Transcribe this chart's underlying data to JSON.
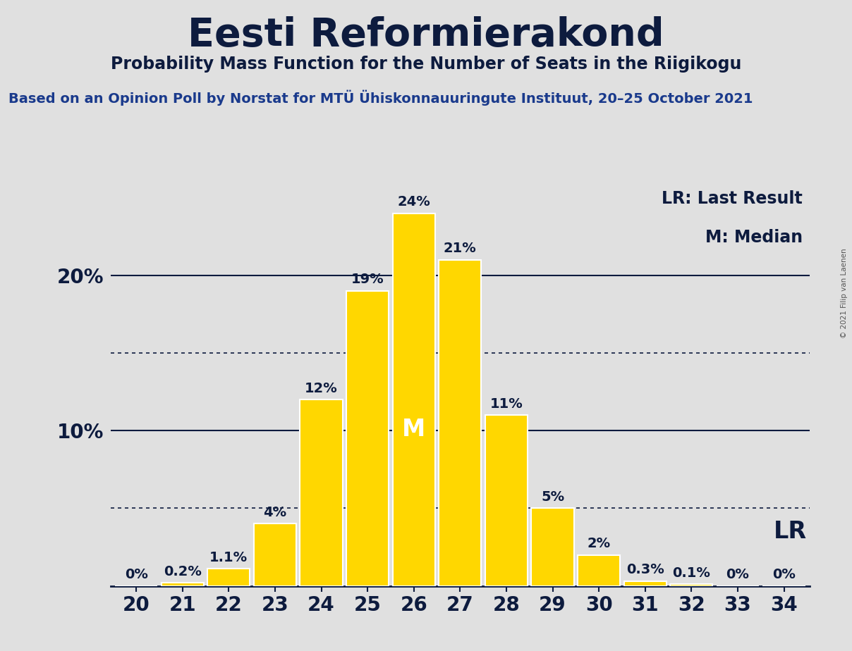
{
  "title": "Eesti Reformierakond",
  "subtitle": "Probability Mass Function for the Number of Seats in the Riigikogu",
  "source": "Based on an Opinion Poll by Norstat for MTÜ Ühiskonnauuringute Instituut, 20–25 October 2021",
  "copyright": "© 2021 Filip van Laenen",
  "seats": [
    20,
    21,
    22,
    23,
    24,
    25,
    26,
    27,
    28,
    29,
    30,
    31,
    32,
    33,
    34
  ],
  "probabilities": [
    0.0,
    0.2,
    1.1,
    4.0,
    12.0,
    19.0,
    24.0,
    21.0,
    11.0,
    5.0,
    2.0,
    0.3,
    0.1,
    0.0,
    0.0
  ],
  "bar_color": "#FFD700",
  "bar_edge_color": "#FFFFFF",
  "background_color": "#E0E0E0",
  "text_color": "#0d1b3e",
  "median_seat": 26,
  "lr_seat": 34,
  "median_label": "M",
  "lr_label": "LR",
  "legend_lr": "LR: Last Result",
  "legend_m": "M: Median",
  "solid_lines": [
    10.0,
    20.0
  ],
  "dotted_lines": [
    5.0,
    15.0
  ],
  "ylim": [
    0,
    26
  ],
  "title_fontsize": 40,
  "subtitle_fontsize": 17,
  "source_fontsize": 14,
  "bar_label_fontsize": 14,
  "axis_tick_fontsize": 20,
  "legend_fontsize": 17,
  "median_fontsize": 24,
  "lr_fontsize": 24
}
